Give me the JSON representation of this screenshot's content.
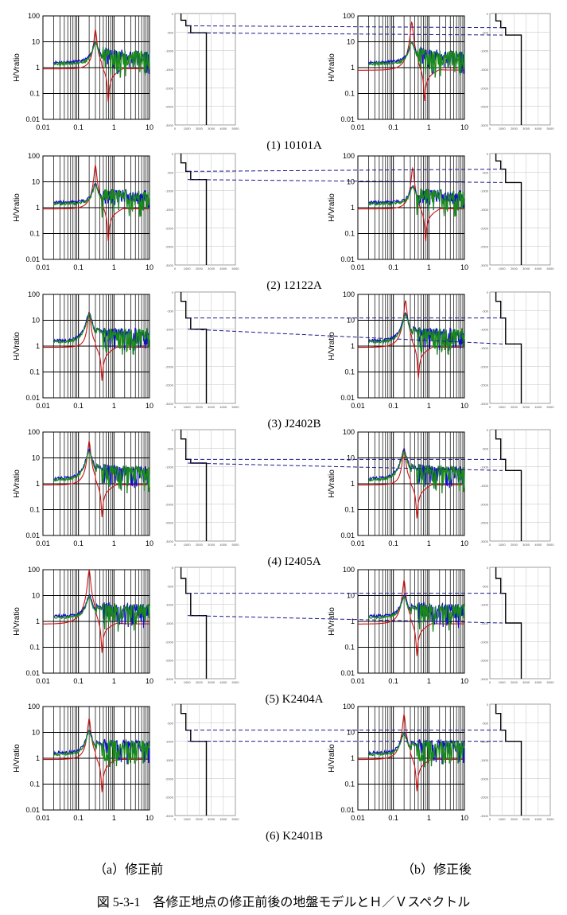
{
  "figure_caption": "図 5-3-1　各修正地点の修正前後の地盤モデルとＨ／Ｖスペクトル",
  "column_labels": [
    "（a）修正前",
    "（b）修正後"
  ],
  "hv_axis": {
    "ylabel": "H/Vratio",
    "x_ticks": [
      "0.01",
      "0.1",
      "1",
      "10"
    ],
    "y_ticks": [
      "100",
      "10",
      "1",
      "0.1",
      "0.01"
    ],
    "xlim": [
      0.01,
      10
    ],
    "ylim": [
      0.01,
      100
    ],
    "scale": "log-log",
    "grid": true
  },
  "profile_axis": {
    "x_ticks": [
      "0",
      "1000",
      "2000",
      "3000",
      "4000",
      "5000"
    ],
    "y_ticks": [
      "0",
      "-500",
      "-1000",
      "-1500",
      "-2000",
      "-2500",
      "-3000"
    ]
  },
  "series_colors": {
    "green": "#1a8a1a",
    "blue": "#1010c8",
    "red": "#d01010",
    "model_dash": "#1a1a8c",
    "profile": "#000000"
  },
  "chart_data": [
    {
      "site": "(1) 10101A",
      "type": "line",
      "before": {
        "peak_freq": 0.3,
        "obs_peak": 10,
        "model_peak": 30,
        "base_level": 0.9,
        "profile": [
          [
            500,
            0
          ],
          [
            500,
            -180
          ],
          [
            900,
            -180
          ],
          [
            900,
            -330
          ],
          [
            1300,
            -330
          ],
          [
            1300,
            -520
          ],
          [
            2600,
            -520
          ],
          [
            2600,
            -3000
          ]
        ]
      },
      "after": {
        "peak_freq": 0.33,
        "obs_peak": 10,
        "model_peak": 60,
        "base_level": 0.8,
        "profile": [
          [
            500,
            0
          ],
          [
            500,
            -200
          ],
          [
            900,
            -200
          ],
          [
            900,
            -380
          ],
          [
            1300,
            -380
          ],
          [
            1300,
            -580
          ],
          [
            2600,
            -580
          ],
          [
            2600,
            -3000
          ]
        ]
      }
    },
    {
      "site": "(2) 12122A",
      "type": "line",
      "before": {
        "peak_freq": 0.3,
        "obs_peak": 8,
        "model_peak": 45,
        "base_level": 0.9,
        "profile": [
          [
            500,
            0
          ],
          [
            500,
            -250
          ],
          [
            900,
            -250
          ],
          [
            900,
            -480
          ],
          [
            1300,
            -480
          ],
          [
            1300,
            -700
          ],
          [
            2600,
            -700
          ],
          [
            2600,
            -3000
          ]
        ]
      },
      "after": {
        "peak_freq": 0.35,
        "obs_peak": 7,
        "model_peak": 35,
        "base_level": 0.9,
        "profile": [
          [
            500,
            0
          ],
          [
            500,
            -200
          ],
          [
            900,
            -200
          ],
          [
            900,
            -420
          ],
          [
            1300,
            -420
          ],
          [
            1300,
            -780
          ],
          [
            2600,
            -780
          ],
          [
            2600,
            -3000
          ]
        ]
      }
    },
    {
      "site": "(3) J2402B",
      "type": "line",
      "before": {
        "peak_freq": 0.2,
        "obs_peak": 18,
        "model_peak": 22,
        "base_level": 0.9,
        "profile": [
          [
            500,
            0
          ],
          [
            500,
            -250
          ],
          [
            900,
            -250
          ],
          [
            900,
            -700
          ],
          [
            1300,
            -700
          ],
          [
            1300,
            -1000
          ],
          [
            2600,
            -1000
          ],
          [
            2600,
            -3000
          ]
        ]
      },
      "after": {
        "peak_freq": 0.22,
        "obs_peak": 18,
        "model_peak": 60,
        "base_level": 0.9,
        "profile": [
          [
            500,
            0
          ],
          [
            500,
            -250
          ],
          [
            900,
            -250
          ],
          [
            900,
            -700
          ],
          [
            1300,
            -700
          ],
          [
            1300,
            -1400
          ],
          [
            2600,
            -1400
          ],
          [
            2600,
            -3000
          ]
        ]
      }
    },
    {
      "site": "(4) I2405A",
      "type": "line",
      "before": {
        "peak_freq": 0.2,
        "obs_peak": 20,
        "model_peak": 45,
        "base_level": 0.9,
        "profile": [
          [
            500,
            0
          ],
          [
            500,
            -250
          ],
          [
            900,
            -250
          ],
          [
            900,
            -800
          ],
          [
            1300,
            -800
          ],
          [
            1300,
            -900
          ],
          [
            2600,
            -900
          ],
          [
            2600,
            -3000
          ]
        ]
      },
      "after": {
        "peak_freq": 0.2,
        "obs_peak": 20,
        "model_peak": 25,
        "base_level": 0.9,
        "profile": [
          [
            500,
            0
          ],
          [
            500,
            -250
          ],
          [
            900,
            -250
          ],
          [
            900,
            -800
          ],
          [
            1300,
            -800
          ],
          [
            1300,
            -1100
          ],
          [
            2600,
            -1100
          ],
          [
            2600,
            -3000
          ]
        ]
      }
    },
    {
      "site": "(5) K2404A",
      "type": "line",
      "before": {
        "peak_freq": 0.2,
        "obs_peak": 10,
        "model_peak": 100,
        "base_level": 0.8,
        "profile": [
          [
            500,
            0
          ],
          [
            500,
            -300
          ],
          [
            900,
            -300
          ],
          [
            900,
            -700
          ],
          [
            1300,
            -700
          ],
          [
            1300,
            -1300
          ],
          [
            2600,
            -1300
          ],
          [
            2600,
            -3000
          ]
        ]
      },
      "after": {
        "peak_freq": 0.2,
        "obs_peak": 10,
        "model_peak": 40,
        "base_level": 0.8,
        "profile": [
          [
            500,
            0
          ],
          [
            500,
            -300
          ],
          [
            900,
            -300
          ],
          [
            900,
            -700
          ],
          [
            1300,
            -700
          ],
          [
            1300,
            -1500
          ],
          [
            2600,
            -1500
          ],
          [
            2600,
            -3000
          ]
        ]
      }
    },
    {
      "site": "(6) K2401B",
      "type": "line",
      "before": {
        "peak_freq": 0.2,
        "obs_peak": 12,
        "model_peak": 35,
        "base_level": 0.9,
        "profile": [
          [
            500,
            0
          ],
          [
            500,
            -250
          ],
          [
            900,
            -250
          ],
          [
            900,
            -700
          ],
          [
            1300,
            -700
          ],
          [
            1300,
            -1000
          ],
          [
            2600,
            -1000
          ],
          [
            2600,
            -3000
          ]
        ]
      },
      "after": {
        "peak_freq": 0.2,
        "obs_peak": 10,
        "model_peak": 50,
        "base_level": 0.9,
        "profile": [
          [
            500,
            0
          ],
          [
            500,
            -250
          ],
          [
            900,
            -250
          ],
          [
            900,
            -700
          ],
          [
            1300,
            -700
          ],
          [
            1300,
            -1000
          ],
          [
            2600,
            -1000
          ],
          [
            2600,
            -3000
          ]
        ]
      }
    }
  ]
}
